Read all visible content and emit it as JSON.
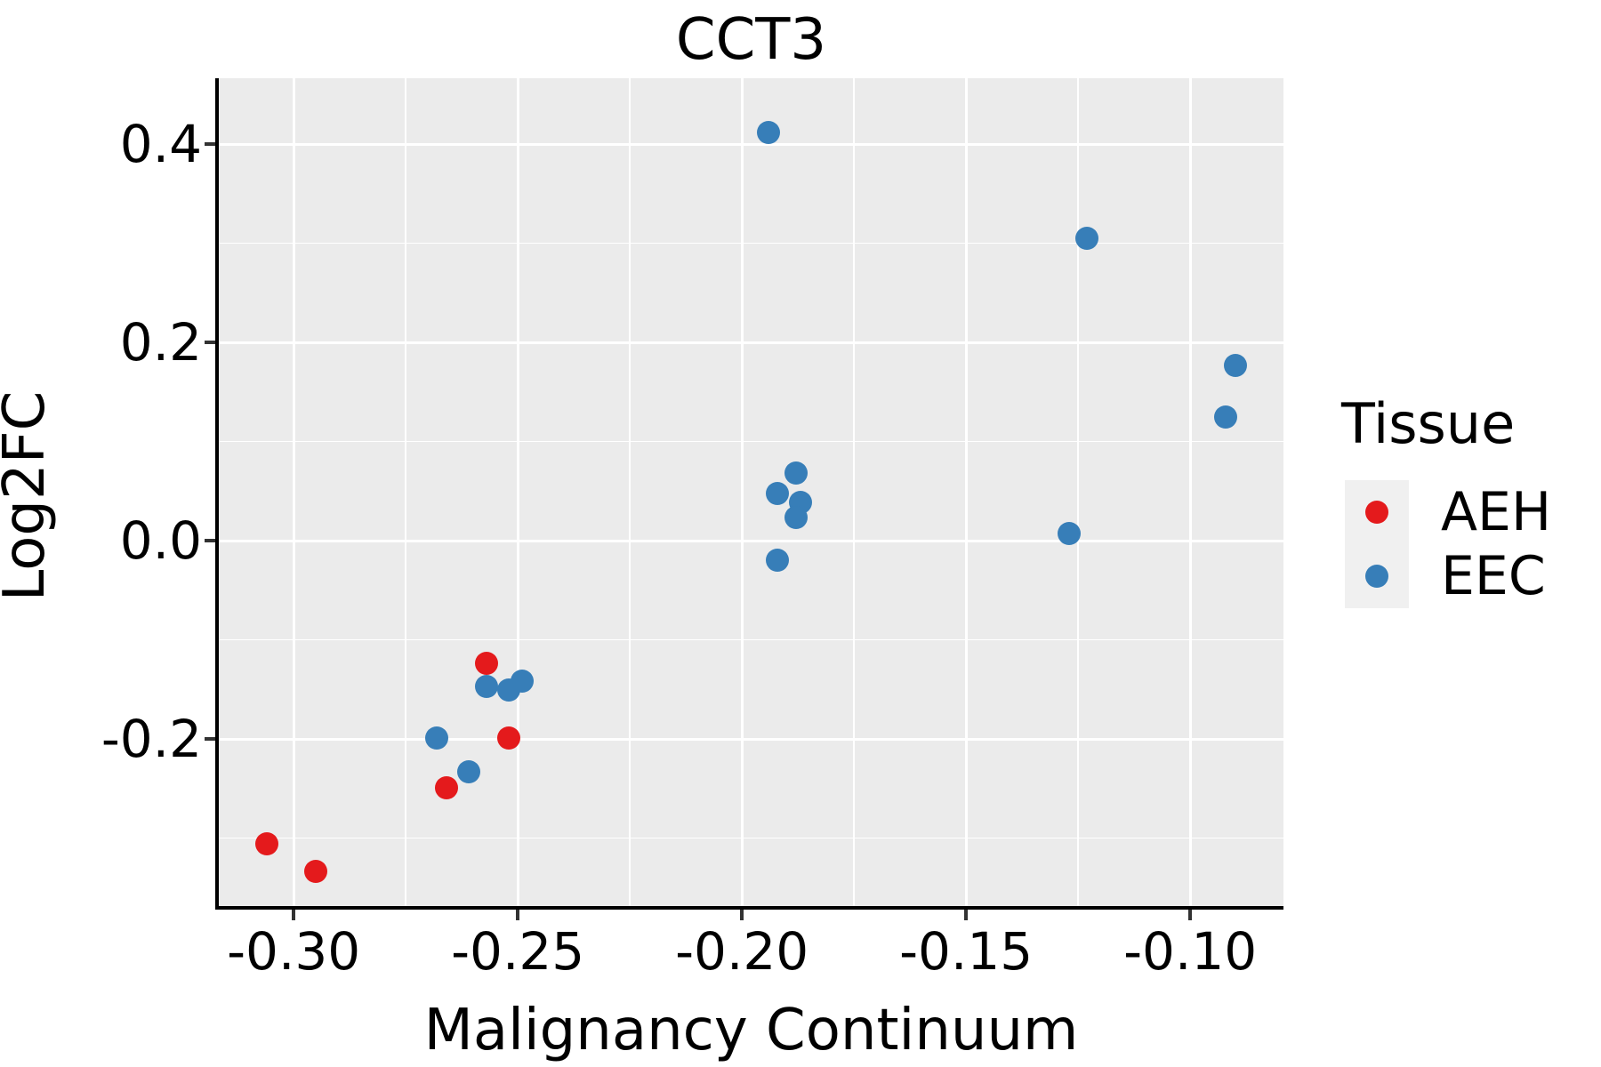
{
  "title": "CCT3",
  "axes": {
    "x": {
      "label": "Malignancy Continuum",
      "major_ticks": [
        {
          "v": -0.3,
          "label": "-0.30"
        },
        {
          "v": -0.25,
          "label": "-0.25"
        },
        {
          "v": -0.2,
          "label": "-0.20"
        },
        {
          "v": -0.15,
          "label": "-0.15"
        },
        {
          "v": -0.1,
          "label": "-0.10"
        }
      ],
      "minor_ticks": [
        -0.275,
        -0.225,
        -0.175,
        -0.125
      ]
    },
    "y": {
      "label": "Log2FC",
      "major_ticks": [
        {
          "v": 0.4,
          "label": "0.4"
        },
        {
          "v": 0.2,
          "label": "0.2"
        },
        {
          "v": 0.0,
          "label": "0.0"
        },
        {
          "v": -0.2,
          "label": "-0.2"
        }
      ],
      "minor_ticks": [
        0.3,
        0.1,
        -0.1,
        -0.3
      ]
    }
  },
  "legend": {
    "title": "Tissue",
    "items": [
      {
        "label": "AEH",
        "color": "#e41a1c"
      },
      {
        "label": "EEC",
        "color": "#377eb8"
      }
    ]
  },
  "colors": {
    "panel_bg": "#ebebeb",
    "grid": "#ffffff",
    "spine": "#000000",
    "tick": "#333333",
    "text": "#000000",
    "legend_key_bg": "#f0f0f0",
    "aeh": "#e41a1c",
    "eec": "#377eb8"
  },
  "chart_data": {
    "type": "scatter",
    "title": "CCT3",
    "xlabel": "Malignancy Continuum",
    "ylabel": "Log2FC",
    "xlim": [
      -0.3167,
      -0.0792
    ],
    "ylim": [
      -0.3686,
      0.4664
    ],
    "grid": true,
    "legend_position": "right",
    "series": [
      {
        "name": "AEH",
        "color": "#e41a1c",
        "points": [
          [
            -0.306,
            -0.306
          ],
          [
            -0.295,
            -0.334
          ],
          [
            -0.257,
            -0.124
          ],
          [
            -0.252,
            -0.199
          ],
          [
            -0.266,
            -0.249
          ]
        ]
      },
      {
        "name": "EEC",
        "color": "#377eb8",
        "points": [
          [
            -0.257,
            -0.147
          ],
          [
            -0.252,
            -0.151
          ],
          [
            -0.249,
            -0.142
          ],
          [
            -0.268,
            -0.199
          ],
          [
            -0.261,
            -0.233
          ],
          [
            -0.194,
            0.412
          ],
          [
            -0.188,
            0.068
          ],
          [
            -0.192,
            0.048
          ],
          [
            -0.187,
            0.039
          ],
          [
            -0.188,
            0.023
          ],
          [
            -0.192,
            -0.02
          ],
          [
            -0.127,
            0.007
          ],
          [
            -0.123,
            0.305
          ],
          [
            -0.092,
            0.125
          ],
          [
            -0.09,
            0.177
          ]
        ]
      }
    ]
  }
}
